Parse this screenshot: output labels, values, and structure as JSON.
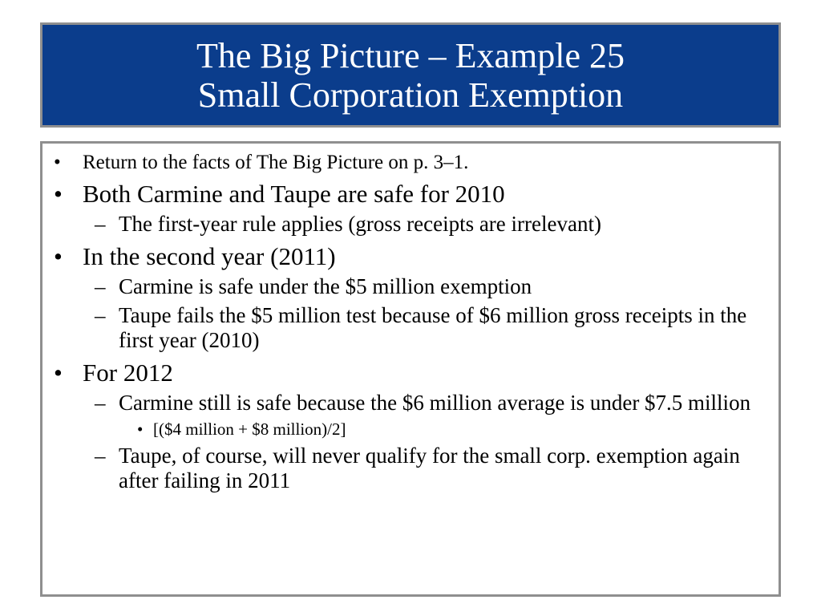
{
  "title": {
    "line1": "The Big Picture – Example 25",
    "line2": "Small Corporation Exemption"
  },
  "bullets": {
    "b1": "Return to the facts of The Big Picture on p. 3–1.",
    "b2": "Both Carmine and Taupe are safe for 2010",
    "b2_1": "The first-year rule applies (gross receipts are irrelevant)",
    "b3": "In the second year (2011)",
    "b3_1": "Carmine is safe under the $5 million exemption",
    "b3_2": "Taupe fails the $5 million test because of $6 million gross receipts in the first year (2010)",
    "b4": "For 2012",
    "b4_1": "Carmine still is safe because the $6 million average is under $7.5 million",
    "b4_1_1": "[($4 million + $8 million)/2]",
    "b4_2": "Taupe, of course, will never qualify for the small corp. exemption again after failing in 2011"
  },
  "colors": {
    "title_background": "#0b3d8c",
    "border": "#8f8f8f",
    "title_text": "#ffffff"
  }
}
